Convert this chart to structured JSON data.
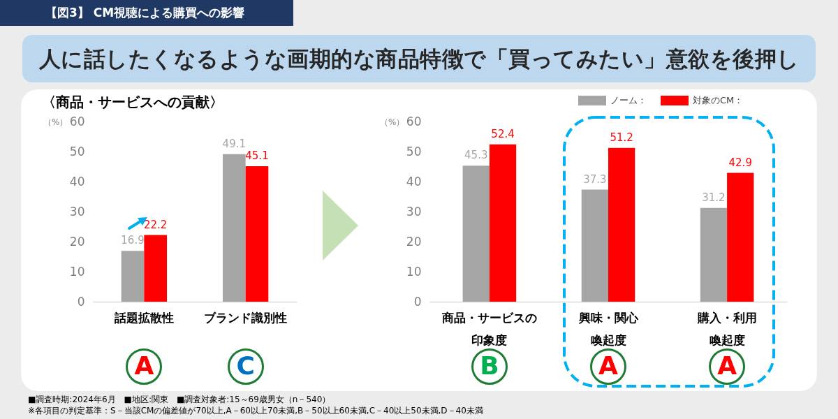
{
  "chart_data": [
    {
      "type": "bar",
      "title": "【図3】 CM視聴による購買への影響",
      "subtitle": "人に話したくなるような画期的な商品特徴で「買ってみたい」意欲を後押し",
      "ylabel": "（%）",
      "categories": [
        "話題拡散性",
        "ブランド識別性"
      ],
      "series": [
        {
          "color": "#a5a5a5",
          "values": [
            16.9,
            49.1
          ]
        },
        {
          "color": "#ff0000",
          "values": [
            22.2,
            45.1
          ]
        }
      ],
      "ylim": [
        0,
        60
      ],
      "yticks": [
        0,
        10,
        20,
        30,
        40,
        50,
        60
      ],
      "data_labels": true,
      "annotations": [
        "〈商品・サービスへの貢献〉",
        "A",
        "C"
      ]
    },
    {
      "type": "bar",
      "ylabel": "（%）",
      "categories": [
        "商品・サービスの印象度",
        "興味・関心喚起度",
        "購入・利用喚起度"
      ],
      "series": [
        {
          "name": "ノーム：",
          "color": "#a5a5a5",
          "values": [
            45.3,
            37.3,
            31.2
          ]
        },
        {
          "name": "対象のCM：",
          "color": "#ff0000",
          "values": [
            52.4,
            51.2,
            42.9
          ]
        }
      ],
      "ylim": [
        0,
        60
      ],
      "yticks": [
        0,
        10,
        20,
        30,
        40,
        50,
        60
      ],
      "data_labels": true,
      "legend": "top right",
      "annotations": [
        "B",
        "A",
        "A",
        "■調査時期:2024年6月　■地区:関東　■調査対象者:15～69歳男女（n－540）",
        "※各項目の判定基準：S－当該CMの偏差値が70以上,A－60以上70未満,B－50以上60未満,C－40以上50未満,D－40未満"
      ]
    }
  ]
}
